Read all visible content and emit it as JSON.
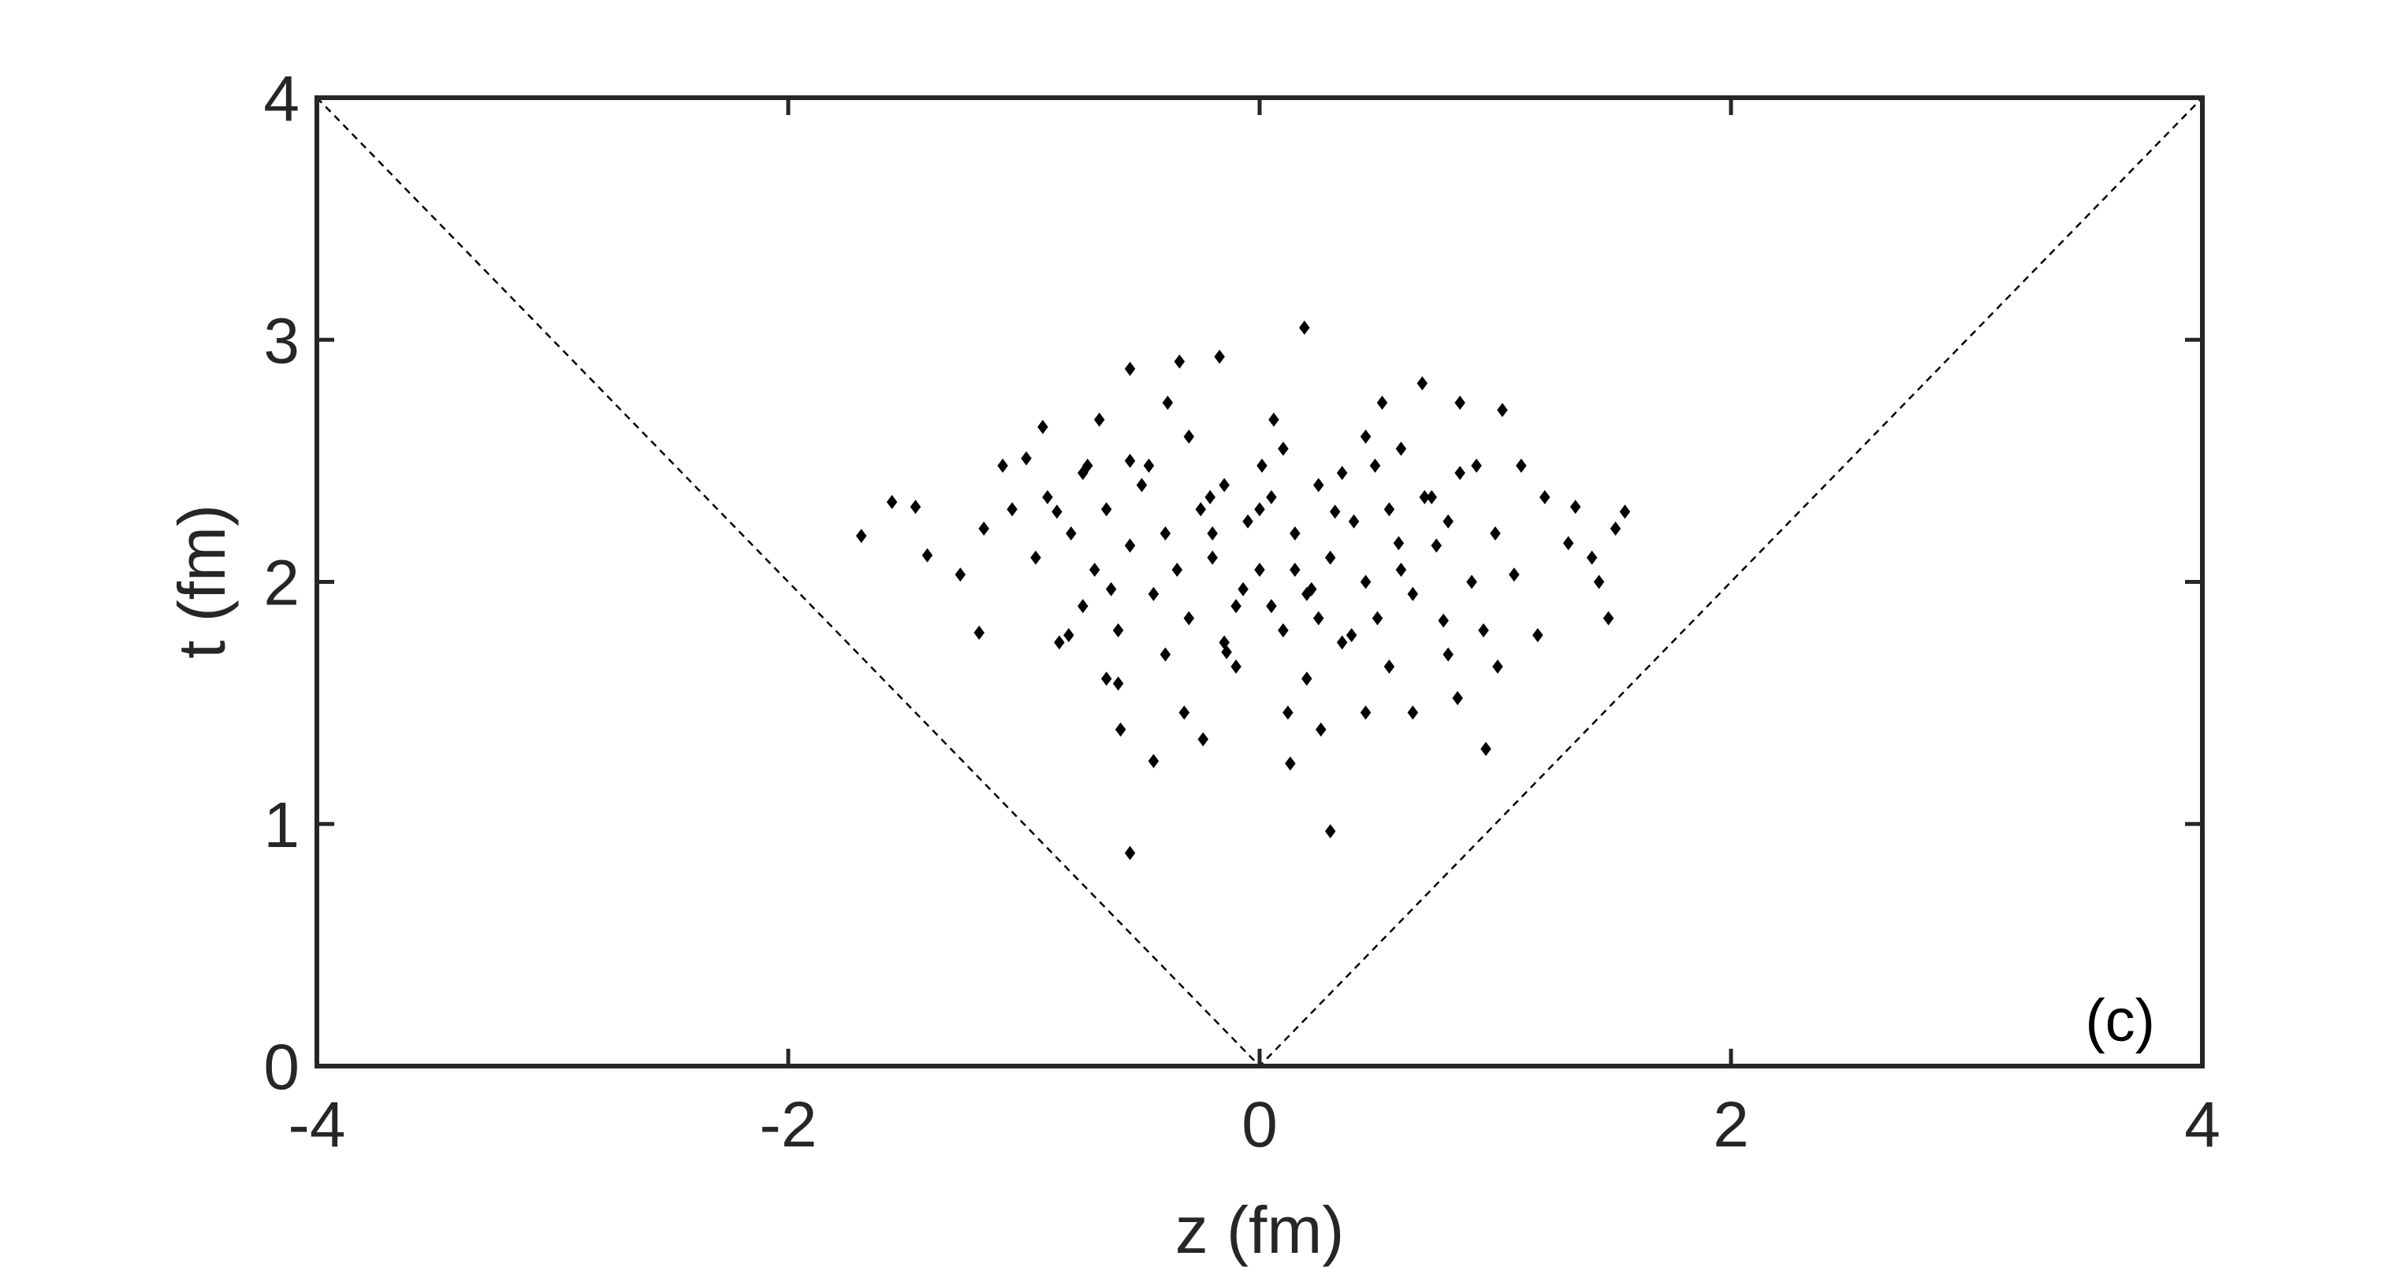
{
  "chart_data": {
    "type": "scatter",
    "xlabel": "z (fm)",
    "ylabel": "t (fm)",
    "annotation": "(c)",
    "xlim": [
      -4,
      4
    ],
    "ylim": [
      0,
      4
    ],
    "xticks": [
      -4,
      -2,
      0,
      2,
      4
    ],
    "yticks": [
      0,
      1,
      2,
      3,
      4
    ],
    "reference_line": {
      "x": [
        -4,
        0,
        4
      ],
      "y": [
        4,
        0,
        4
      ],
      "color": "#000000",
      "dashed": true
    },
    "series": [
      {
        "color": "#000000",
        "x": [
          -1.69,
          -1.56,
          -1.46,
          -1.41,
          -1.27,
          -1.19,
          -1.17,
          -1.09,
          -0.99,
          -0.92,
          -0.86,
          -0.81,
          -0.73,
          -0.68,
          -0.63,
          -0.6,
          -0.59,
          -0.55,
          -0.55,
          -0.47,
          -0.45,
          -0.39,
          -0.34,
          -0.32,
          -0.24,
          -0.21,
          -0.17,
          -0.14,
          -0.07,
          0.01,
          0.06,
          0.12,
          0.13,
          0.19,
          0.22,
          0.26,
          0.3,
          0.32,
          0.39,
          0.45,
          0.49,
          0.52,
          0.59,
          0.65,
          0.69,
          0.73,
          0.78,
          0.84,
          0.85,
          0.92,
          0.96,
          1.01,
          1.03,
          1.08,
          1.11,
          1.18,
          1.21,
          1.31,
          1.34,
          1.41,
          1.44,
          1.48,
          1.51,
          1.55,
          -0.9,
          -0.8,
          -0.75,
          -0.7,
          -0.65,
          -0.6,
          -0.55,
          -0.5,
          -0.45,
          -0.4,
          -0.35,
          -0.3,
          -0.25,
          -0.2,
          -0.15,
          -0.1,
          -0.05,
          0,
          0.05,
          0.1,
          0.15,
          0.2,
          0.25,
          0.3,
          0.35,
          0.4,
          0.45,
          0.5,
          0.55,
          0.6,
          0.65,
          0.7,
          0.75,
          0.8,
          0.85,
          0.9,
          0.95,
          1.0,
          -0.85,
          -0.95,
          -1.05,
          -0.65,
          -0.3,
          0.1,
          0.45,
          -0.1,
          0.2,
          0.55,
          -0.55,
          0.35,
          -0.2,
          0.0,
          0.15,
          -0.4,
          0.6,
          0.8,
          -0.75,
          0.25,
          -0.15,
          0.05
        ],
        "y": [
          2.19,
          2.33,
          2.31,
          2.11,
          2.03,
          1.79,
          2.22,
          2.48,
          2.51,
          2.64,
          2.29,
          1.78,
          2.48,
          2.67,
          1.97,
          1.58,
          1.39,
          0.88,
          2.88,
          2.48,
          1.26,
          2.74,
          2.91,
          1.46,
          1.35,
          2.35,
          2.93,
          1.71,
          1.97,
          2.48,
          2.67,
          1.46,
          1.25,
          3.05,
          1.97,
          1.39,
          0.97,
          2.29,
          1.78,
          1.46,
          2.48,
          2.74,
          2.16,
          1.46,
          2.82,
          2.35,
          1.84,
          1.52,
          2.74,
          2.48,
          1.31,
          1.65,
          2.71,
          2.03,
          2.48,
          1.78,
          2.35,
          2.16,
          2.31,
          2.1,
          2.0,
          1.85,
          2.22,
          2.29,
          2.35,
          2.2,
          1.9,
          2.05,
          2.3,
          1.8,
          2.15,
          2.4,
          1.95,
          2.2,
          2.05,
          1.85,
          2.3,
          2.1,
          2.4,
          1.9,
          2.25,
          2.05,
          2.35,
          1.8,
          2.2,
          1.95,
          2.4,
          2.1,
          1.75,
          2.25,
          2.0,
          1.85,
          2.3,
          2.05,
          1.95,
          2.35,
          2.15,
          1.7,
          2.45,
          2.0,
          1.8,
          2.2,
          1.75,
          2.1,
          2.3,
          1.6,
          2.6,
          2.55,
          2.6,
          1.65,
          1.6,
          1.65,
          2.5,
          2.45,
          2.2,
          2.3,
          2.05,
          1.7,
          2.55,
          2.25,
          2.45,
          1.85,
          1.75,
          1.9
        ]
      }
    ]
  }
}
